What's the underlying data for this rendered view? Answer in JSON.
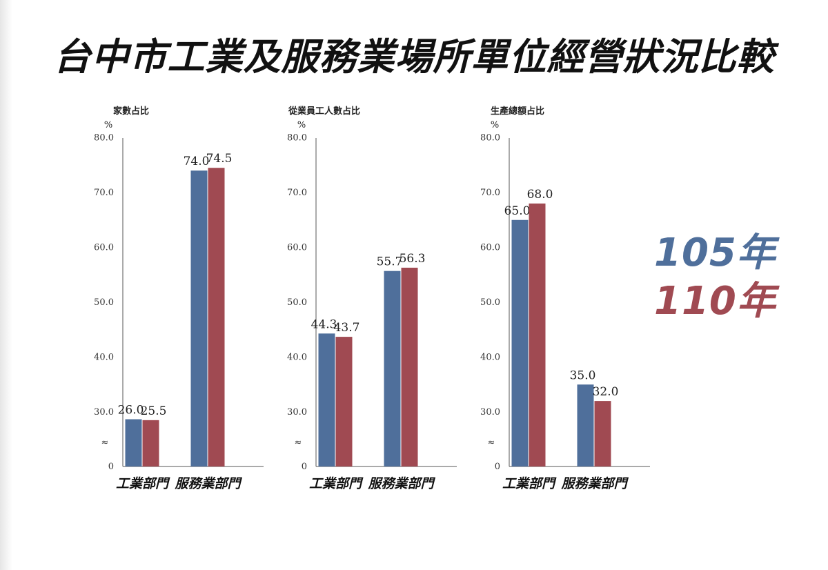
{
  "title": "台中市工業及服務業場所單位經營狀況比較",
  "legend": [
    {
      "label": "105年",
      "color": "#4f6f9b"
    },
    {
      "label": "110年",
      "color": "#a04a52"
    }
  ],
  "chart_data": [
    {
      "type": "bar",
      "title": "家數占比",
      "ylabel": "%",
      "categories": [
        "工業部門",
        "服務業部門"
      ],
      "series": [
        {
          "name": "105年",
          "values": [
            26.0,
            74.0
          ]
        },
        {
          "name": "110年",
          "values": [
            25.5,
            74.5
          ]
        }
      ],
      "value_labels": [
        [
          "26.0",
          "74.0"
        ],
        [
          "25.5",
          "74.5"
        ]
      ],
      "ylim": [
        0,
        80
      ],
      "axis_break": true,
      "yticks": [
        "0",
        "30.0",
        "40.0",
        "50.0",
        "60.0",
        "70.0",
        "80.0"
      ],
      "grid": false
    },
    {
      "type": "bar",
      "title": "從業員工人數占比",
      "ylabel": "%",
      "categories": [
        "工業部門",
        "服務業部門"
      ],
      "series": [
        {
          "name": "105年",
          "values": [
            44.3,
            55.7
          ]
        },
        {
          "name": "110年",
          "values": [
            43.7,
            56.3
          ]
        }
      ],
      "value_labels": [
        [
          "44.3",
          "55.7"
        ],
        [
          "43.7",
          "56.3"
        ]
      ],
      "ylim": [
        0,
        80
      ],
      "axis_break": true,
      "yticks": [
        "0",
        "30.0",
        "40.0",
        "50.0",
        "60.0",
        "70.0",
        "80.0"
      ],
      "grid": false
    },
    {
      "type": "bar",
      "title": "生產總額占比",
      "ylabel": "%",
      "categories": [
        "工業部門",
        "服務業部門"
      ],
      "series": [
        {
          "name": "105年",
          "values": [
            65.0,
            35.0
          ]
        },
        {
          "name": "110年",
          "values": [
            68.0,
            32.0
          ]
        }
      ],
      "value_labels": [
        [
          "65.0",
          "35.0"
        ],
        [
          "68.0",
          "32.0"
        ]
      ],
      "ylim": [
        0,
        80
      ],
      "axis_break": true,
      "yticks": [
        "0",
        "30.0",
        "40.0",
        "50.0",
        "60.0",
        "70.0",
        "80.0"
      ],
      "grid": false
    }
  ]
}
